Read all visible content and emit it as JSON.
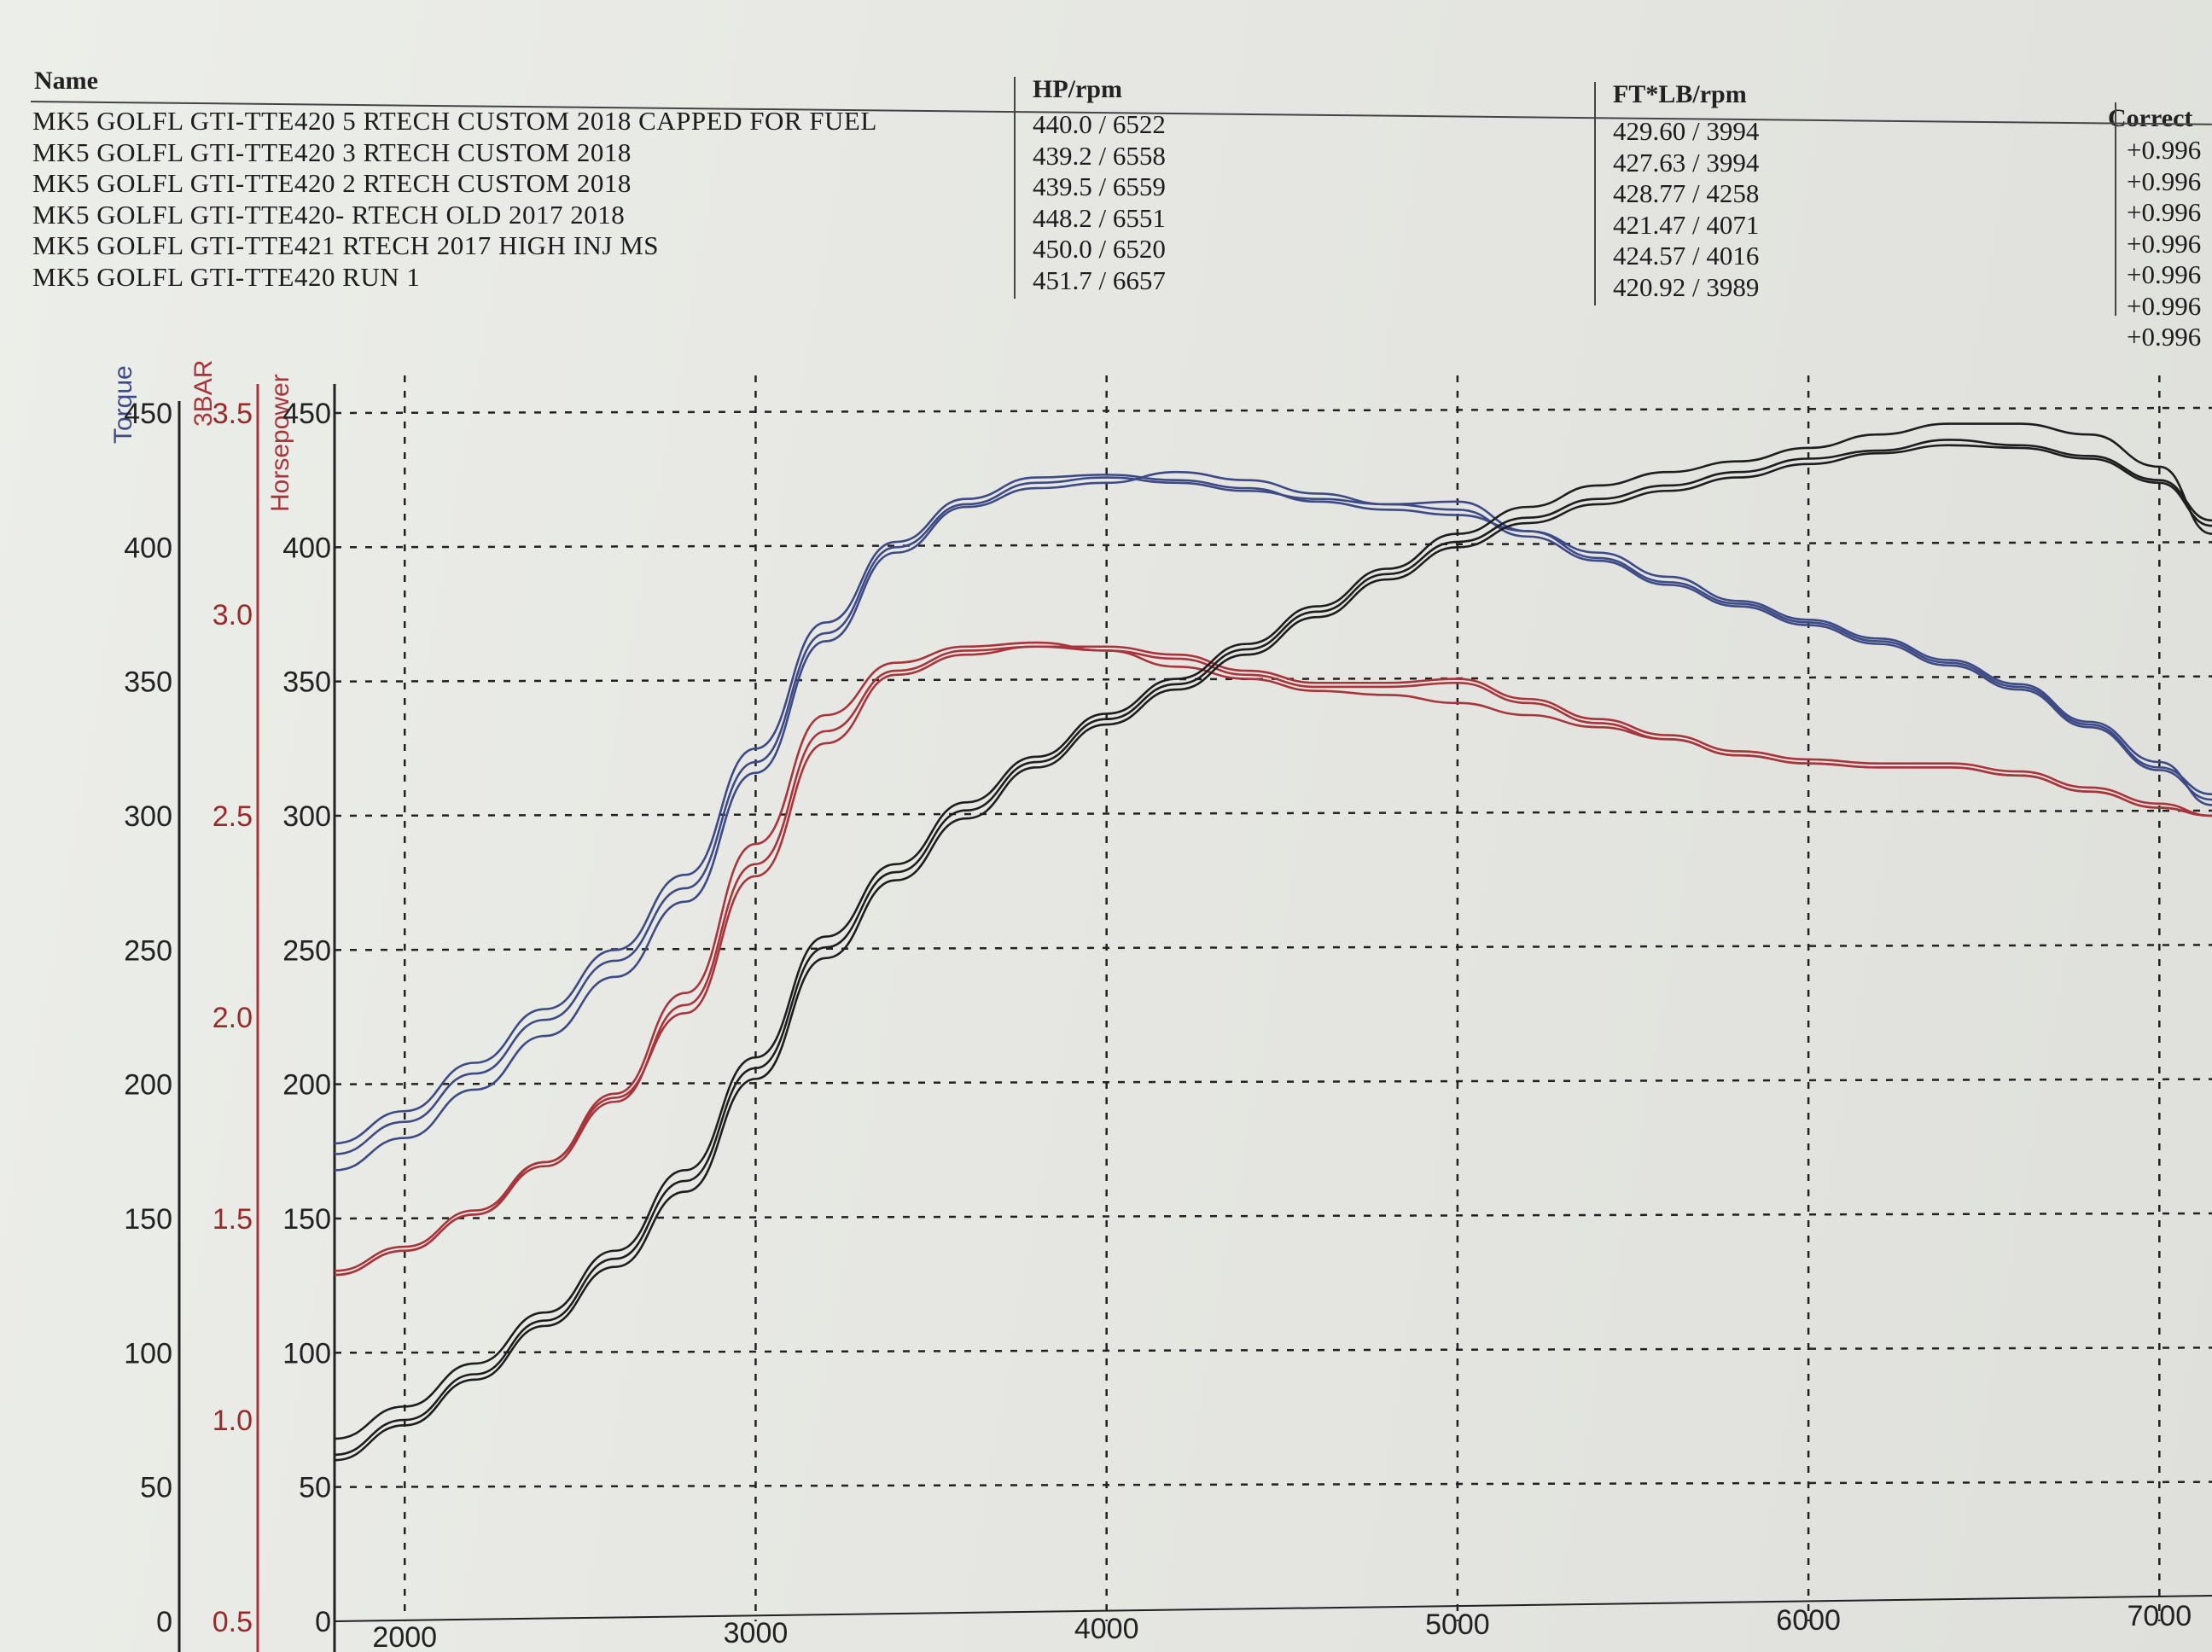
{
  "header": {
    "name_label": "Name",
    "hp_label": "HP/rpm",
    "tq_label": "FT*LB/rpm",
    "corr_label": "Correct",
    "runs": [
      {
        "name": "MK5 GOLFL GTI-TTE420 5 RTECH CUSTOM 2018 CAPPED FOR FUEL",
        "hp": "440.0 / 6522",
        "tq": "429.60 / 3994",
        "corr": "+0.996"
      },
      {
        "name": "MK5 GOLFL GTI-TTE420 3 RTECH CUSTOM 2018",
        "hp": "439.2 / 6558",
        "tq": "427.63 / 3994",
        "corr": "+0.996"
      },
      {
        "name": "MK5 GOLFL GTI-TTE420 2 RTECH CUSTOM 2018",
        "hp": "439.5 / 6559",
        "tq": "428.77 / 4258",
        "corr": "+0.996"
      },
      {
        "name": "MK5 GOLFL GTI-TTE420- RTECH OLD 2017 2018",
        "hp": "448.2 / 6551",
        "tq": "421.47 / 4071",
        "corr": "+0.996"
      },
      {
        "name": "MK5 GOLFL GTI-TTE421 RTECH 2017 HIGH INJ MS",
        "hp": "450.0 / 6520",
        "tq": "424.57 / 4016",
        "corr": "+0.996"
      },
      {
        "name": "MK5 GOLFL GTI-TTE420 RUN 1",
        "hp": "451.7 / 6657",
        "tq": "420.92 / 3989",
        "corr": "+0.996"
      }
    ],
    "extra_corr": "+0.996"
  },
  "chart_data": {
    "type": "line",
    "axes": {
      "torque_label": "Torque",
      "boost_label": "3BAR",
      "hp_label": "Horsepower",
      "x_label": "",
      "x_ticks": [
        "2000",
        "3000",
        "4000",
        "5000",
        "6000",
        "7000"
      ],
      "torque_ticks": [
        "0",
        "50",
        "100",
        "150",
        "200",
        "250",
        "300",
        "350",
        "400",
        "450"
      ],
      "hp_ticks": [
        "0",
        "50",
        "100",
        "150",
        "200",
        "250",
        "300",
        "350",
        "400",
        "450"
      ],
      "boost_ticks": [
        "0.5",
        "1.0",
        "1.5",
        "2.0",
        "2.5",
        "3.0",
        "3.5"
      ],
      "xlim": [
        1800,
        7150
      ],
      "ylim": [
        0,
        450
      ],
      "boost_lim": [
        0.5,
        3.5
      ],
      "grid": true
    },
    "colors": {
      "torque": "#3d4a86",
      "boost": "#a8343c",
      "hp": "#1e1e1e"
    },
    "series": [
      {
        "kind": "torque",
        "x": [
          1800,
          2000,
          2200,
          2400,
          2600,
          2800,
          3000,
          3200,
          3400,
          3600,
          3800,
          4000,
          4200,
          4400,
          4600,
          4800,
          5000,
          5200,
          5400,
          5600,
          5800,
          6000,
          6200,
          6400,
          6600,
          6800,
          7000,
          7150
        ],
        "y": [
          178,
          190,
          208,
          228,
          250,
          278,
          325,
          372,
          402,
          418,
          426,
          427,
          425,
          422,
          417,
          414,
          412,
          406,
          396,
          387,
          379,
          372,
          365,
          357,
          348,
          334,
          318,
          308
        ]
      },
      {
        "kind": "torque",
        "x": [
          1800,
          2000,
          2200,
          2400,
          2600,
          2800,
          3000,
          3200,
          3400,
          3600,
          3800,
          4000,
          4200,
          4400,
          4600,
          4800,
          5000,
          5200,
          5400,
          5600,
          5800,
          6000,
          6200,
          6400,
          6600,
          6800,
          7000,
          7150
        ],
        "y": [
          174,
          186,
          204,
          224,
          246,
          273,
          320,
          368,
          400,
          416,
          424,
          426,
          424,
          421,
          418,
          416,
          414,
          404,
          395,
          386,
          378,
          371,
          364,
          356,
          347,
          333,
          317,
          306
        ]
      },
      {
        "kind": "torque",
        "x": [
          1800,
          2000,
          2200,
          2400,
          2600,
          2800,
          3000,
          3200,
          3400,
          3600,
          3800,
          4000,
          4200,
          4400,
          4600,
          4800,
          5000,
          5200,
          5400,
          5600,
          5800,
          6000,
          6200,
          6400,
          6600,
          6800,
          7000,
          7150
        ],
        "y": [
          168,
          180,
          198,
          218,
          240,
          268,
          316,
          365,
          398,
          415,
          422,
          424,
          428,
          425,
          420,
          416,
          417,
          406,
          398,
          389,
          380,
          373,
          366,
          358,
          349,
          335,
          320,
          304
        ]
      },
      {
        "kind": "boost",
        "x": [
          1800,
          2000,
          2200,
          2400,
          2600,
          2800,
          3000,
          3200,
          3400,
          3600,
          3800,
          4000,
          4200,
          4400,
          4600,
          4800,
          5000,
          5200,
          5400,
          5600,
          5800,
          6000,
          6200,
          6400,
          6600,
          6800,
          7000,
          7150
        ],
        "y": [
          1.36,
          1.42,
          1.51,
          1.64,
          1.81,
          2.06,
          2.43,
          2.75,
          2.88,
          2.92,
          2.93,
          2.91,
          2.87,
          2.84,
          2.81,
          2.8,
          2.78,
          2.75,
          2.72,
          2.69,
          2.65,
          2.63,
          2.62,
          2.62,
          2.6,
          2.56,
          2.52,
          2.5
        ]
      },
      {
        "kind": "boost",
        "x": [
          1800,
          2000,
          2200,
          2400,
          2600,
          2800,
          3000,
          3200,
          3400,
          3600,
          3800,
          4000,
          4200,
          4400,
          4600,
          4800,
          5000,
          5200,
          5400,
          5600,
          5800,
          6000,
          6200,
          6400,
          6600,
          6800,
          7000,
          7150
        ],
        "y": [
          1.36,
          1.42,
          1.51,
          1.63,
          1.79,
          2.03,
          2.38,
          2.71,
          2.86,
          2.91,
          2.92,
          2.91,
          2.89,
          2.85,
          2.82,
          2.82,
          2.83,
          2.78,
          2.73,
          2.69,
          2.65,
          2.63,
          2.62,
          2.62,
          2.6,
          2.56,
          2.52,
          2.5
        ]
      },
      {
        "kind": "boost",
        "x": [
          1800,
          2000,
          2200,
          2400,
          2600,
          2800,
          3000,
          3200,
          3400,
          3600,
          3800,
          4000,
          4200,
          4400,
          4600,
          4800,
          5000,
          5200,
          5400,
          5600,
          5800,
          6000,
          6200,
          6400,
          6600,
          6800,
          7000,
          7150
        ],
        "y": [
          1.37,
          1.43,
          1.52,
          1.64,
          1.8,
          2.01,
          2.35,
          2.68,
          2.85,
          2.9,
          2.92,
          2.92,
          2.9,
          2.86,
          2.83,
          2.83,
          2.84,
          2.79,
          2.74,
          2.7,
          2.66,
          2.64,
          2.63,
          2.63,
          2.61,
          2.57,
          2.53,
          2.5
        ]
      },
      {
        "kind": "hp",
        "x": [
          1800,
          2000,
          2200,
          2400,
          2600,
          2800,
          3000,
          3200,
          3400,
          3600,
          3800,
          4000,
          4200,
          4400,
          4600,
          4800,
          5000,
          5200,
          5400,
          5600,
          5800,
          6000,
          6200,
          6400,
          6600,
          6800,
          7000,
          7150
        ],
        "y": [
          68,
          80,
          96,
          115,
          138,
          168,
          210,
          255,
          282,
          305,
          322,
          338,
          351,
          364,
          378,
          392,
          405,
          415,
          423,
          428,
          432,
          437,
          442,
          446,
          446,
          442,
          430,
          405
        ]
      },
      {
        "kind": "hp",
        "x": [
          1800,
          2000,
          2200,
          2400,
          2600,
          2800,
          3000,
          3200,
          3400,
          3600,
          3800,
          4000,
          4200,
          4400,
          4600,
          4800,
          5000,
          5200,
          5400,
          5600,
          5800,
          6000,
          6200,
          6400,
          6600,
          6800,
          7000,
          7150
        ],
        "y": [
          62,
          75,
          92,
          112,
          135,
          164,
          206,
          251,
          279,
          302,
          320,
          336,
          349,
          362,
          376,
          390,
          402,
          411,
          418,
          423,
          428,
          433,
          436,
          440,
          438,
          434,
          425,
          410
        ]
      },
      {
        "kind": "hp",
        "x": [
          1800,
          2000,
          2200,
          2400,
          2600,
          2800,
          3000,
          3200,
          3400,
          3600,
          3800,
          4000,
          4200,
          4400,
          4600,
          4800,
          5000,
          5200,
          5400,
          5600,
          5800,
          6000,
          6200,
          6400,
          6600,
          6800,
          7000,
          7150
        ],
        "y": [
          60,
          73,
          90,
          110,
          132,
          160,
          202,
          247,
          276,
          299,
          318,
          334,
          347,
          360,
          374,
          388,
          400,
          409,
          416,
          421,
          426,
          431,
          435,
          438,
          437,
          433,
          424,
          408
        ]
      }
    ]
  }
}
